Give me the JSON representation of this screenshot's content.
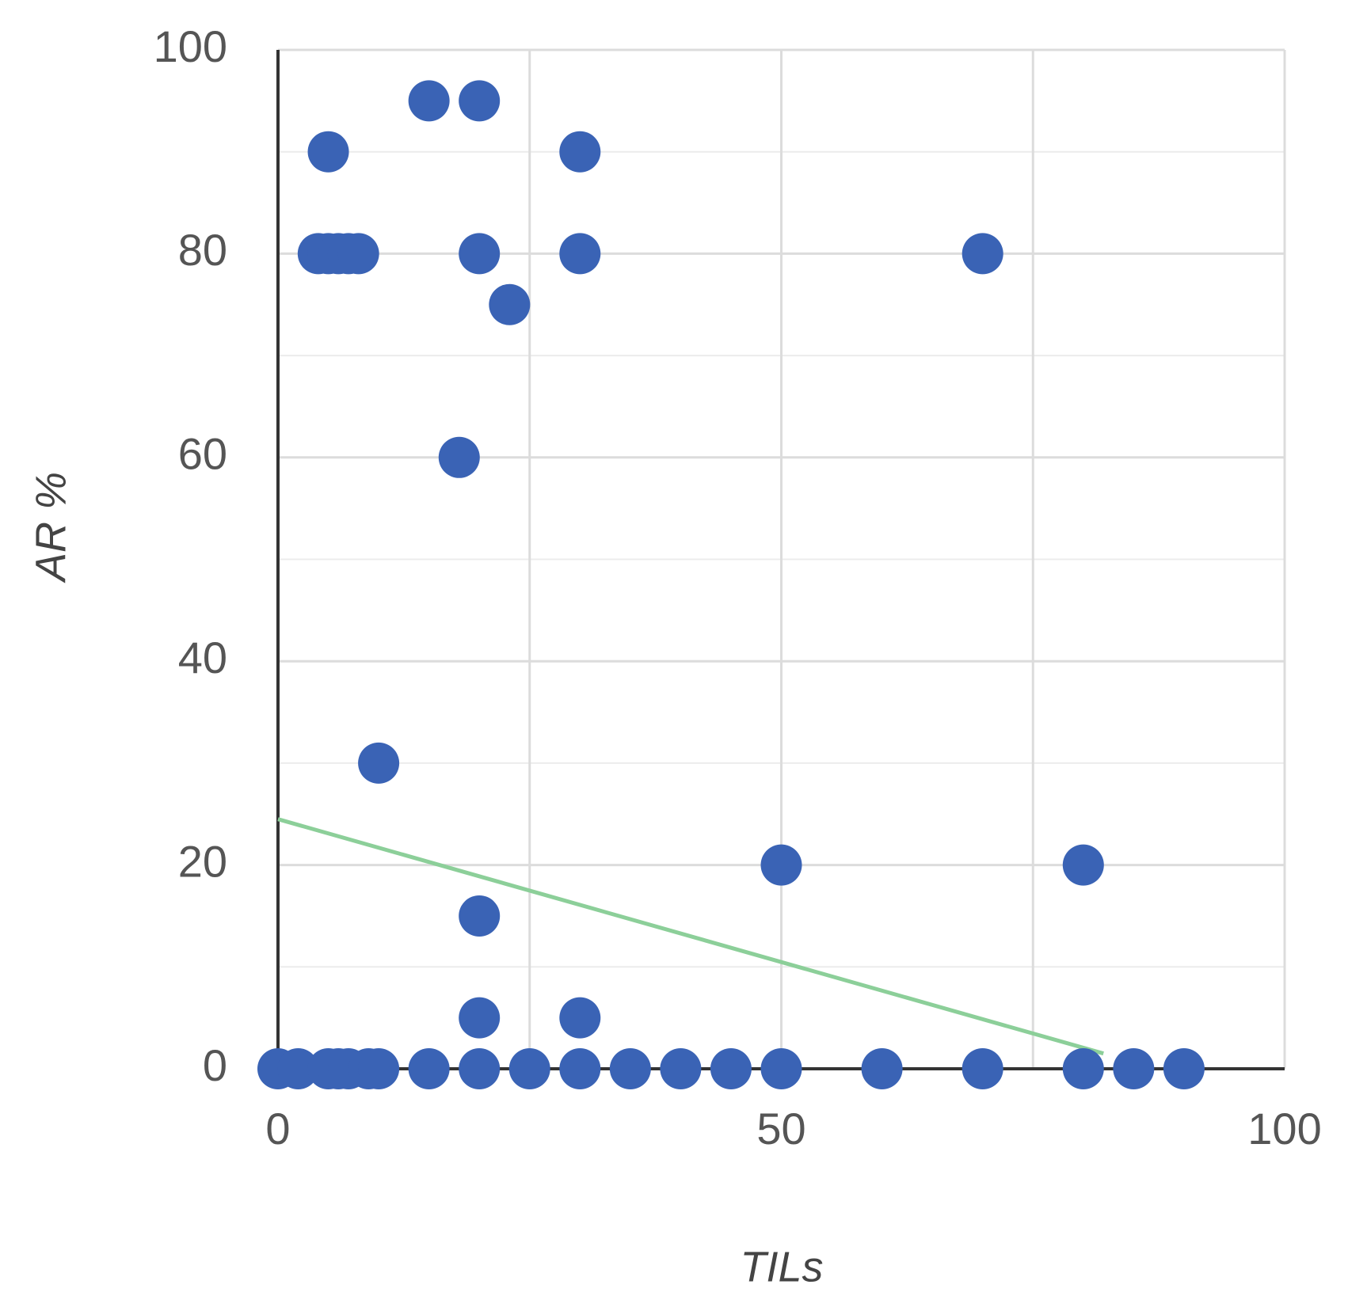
{
  "chart_data": {
    "type": "scatter",
    "x_label": "TILs",
    "y_label": "AR %",
    "series": [
      {
        "color": "#3a63b5",
        "x": [
          0,
          2,
          5,
          6,
          7,
          9,
          10,
          15,
          20,
          25,
          30,
          35,
          40,
          45,
          50,
          60,
          70,
          80,
          85,
          90,
          20,
          30,
          20,
          50,
          80,
          10,
          18,
          23,
          4,
          5,
          6,
          7,
          8,
          20,
          30,
          70,
          5,
          30,
          15,
          20
        ],
        "values": [
          0,
          0,
          0,
          0,
          0,
          0,
          0,
          0,
          0,
          0,
          0,
          0,
          0,
          0,
          0,
          0,
          0,
          0,
          0,
          0,
          5,
          5,
          15,
          20,
          20,
          30,
          60,
          75,
          80,
          80,
          80,
          80,
          80,
          80,
          80,
          80,
          90,
          90,
          95,
          95
        ]
      }
    ],
    "trendline": {
      "color": "#8ccf99",
      "x": [
        0,
        82
      ],
      "values": [
        24.5,
        1.5
      ]
    },
    "xlim": [
      0,
      100
    ],
    "xticks": [
      0,
      50,
      100
    ],
    "xminorticks": [
      25,
      75
    ],
    "ylim": [
      0,
      100
    ],
    "yticks": [
      0,
      20,
      40,
      60,
      80,
      100
    ],
    "yminorticks": [
      10,
      30,
      50,
      70,
      90
    ],
    "grid": true
  }
}
